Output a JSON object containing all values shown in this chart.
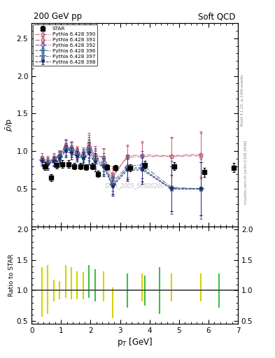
{
  "title_left": "200 GeV pp",
  "title_right": "Soft QCD",
  "ylabel_main": "$\\bar{p}$/p",
  "xlabel": "p$_{T}$ [GeV]",
  "ylabel_ratio": "Ratio to STAR",
  "watermark": "STAR_2005_S6500200",
  "right_label_top": "Rivet 3.1.10, ≥ 100k events",
  "right_label_bottom": "mcplots.cern.ch [arXiv:1306.3436]",
  "ylim_main": [
    0.0,
    2.7
  ],
  "ylim_ratio": [
    0.45,
    2.05
  ],
  "xlim": [
    0.0,
    7.0
  ],
  "yticks_main": [
    0.5,
    1.0,
    1.5,
    2.0,
    2.5
  ],
  "yticks_ratio": [
    0.5,
    1.0,
    1.5,
    2.0
  ],
  "star_x": [
    0.45,
    0.65,
    0.85,
    1.05,
    1.25,
    1.45,
    1.65,
    1.85,
    2.05,
    2.25,
    2.55,
    2.85,
    3.35,
    3.85,
    4.85,
    5.85,
    6.85
  ],
  "star_y": [
    0.8,
    0.65,
    0.82,
    0.83,
    0.83,
    0.8,
    0.8,
    0.79,
    0.8,
    0.7,
    0.79,
    0.78,
    0.78,
    0.82,
    0.8,
    0.72,
    0.78
  ],
  "star_yerr": [
    0.05,
    0.05,
    0.05,
    0.05,
    0.05,
    0.04,
    0.04,
    0.04,
    0.04,
    0.04,
    0.04,
    0.04,
    0.05,
    0.05,
    0.05,
    0.06,
    0.06
  ],
  "pythia_tunes": [
    390,
    391,
    392,
    396,
    397,
    398
  ],
  "pythia_colors": [
    "#c06070",
    "#c06070",
    "#7050b0",
    "#407890",
    "#507890",
    "#202870"
  ],
  "pythia_markers": [
    "o",
    "s",
    "D",
    "*",
    "*",
    "v"
  ],
  "pythia_linestyles": [
    "-.",
    "-.",
    "-.",
    "--",
    "--",
    "--"
  ],
  "pythia_390_x": [
    0.35,
    0.55,
    0.75,
    0.95,
    1.15,
    1.35,
    1.55,
    1.75,
    1.95,
    2.15,
    2.45,
    2.75,
    3.25,
    3.75,
    4.75,
    5.75
  ],
  "pythia_390_y": [
    0.92,
    0.86,
    0.91,
    0.95,
    1.07,
    1.05,
    0.97,
    0.95,
    1.07,
    0.95,
    0.92,
    0.65,
    0.94,
    0.95,
    0.94,
    0.96
  ],
  "pythia_390_yerr": [
    0.05,
    0.08,
    0.06,
    0.06,
    0.08,
    0.08,
    0.07,
    0.08,
    0.15,
    0.12,
    0.12,
    0.12,
    0.15,
    0.18,
    0.25,
    0.3
  ],
  "pythia_391_x": [
    0.35,
    0.55,
    0.75,
    0.95,
    1.15,
    1.35,
    1.55,
    1.75,
    1.95,
    2.15,
    2.45,
    2.75,
    3.25,
    3.75,
    4.75,
    5.75
  ],
  "pythia_391_y": [
    0.88,
    0.85,
    0.9,
    0.95,
    1.08,
    1.04,
    1.0,
    0.97,
    1.1,
    0.95,
    0.91,
    0.68,
    0.92,
    0.93,
    0.93,
    0.94
  ],
  "pythia_391_yerr": [
    0.05,
    0.07,
    0.06,
    0.06,
    0.08,
    0.08,
    0.07,
    0.08,
    0.14,
    0.12,
    0.12,
    0.12,
    0.15,
    0.18,
    0.25,
    0.3
  ],
  "pythia_392_x": [
    0.35,
    0.55,
    0.75,
    0.95,
    1.15,
    1.35,
    1.55,
    1.75,
    1.95,
    2.15,
    2.45,
    2.75,
    3.25,
    3.75,
    4.75,
    5.75
  ],
  "pythia_392_y": [
    0.88,
    0.84,
    0.88,
    0.94,
    1.06,
    1.03,
    0.98,
    0.95,
    1.05,
    0.92,
    0.85,
    0.59,
    0.8,
    0.82,
    0.52,
    0.5
  ],
  "pythia_392_yerr": [
    0.05,
    0.07,
    0.06,
    0.06,
    0.08,
    0.08,
    0.07,
    0.08,
    0.14,
    0.12,
    0.12,
    0.12,
    0.15,
    0.18,
    0.35,
    0.4
  ],
  "pythia_396_x": [
    0.35,
    0.55,
    0.75,
    0.95,
    1.15,
    1.35,
    1.55,
    1.75,
    1.95,
    2.15,
    2.45,
    2.75,
    3.25,
    3.75,
    4.75,
    5.75
  ],
  "pythia_396_y": [
    0.88,
    0.84,
    0.87,
    0.93,
    1.03,
    1.01,
    0.96,
    0.93,
    1.02,
    0.9,
    0.82,
    0.56,
    0.77,
    0.77,
    0.5,
    0.5
  ],
  "pythia_396_yerr": [
    0.05,
    0.07,
    0.06,
    0.06,
    0.08,
    0.08,
    0.07,
    0.08,
    0.14,
    0.12,
    0.12,
    0.12,
    0.15,
    0.18,
    0.3,
    0.35
  ],
  "pythia_397_x": [
    0.35,
    0.55,
    0.75,
    0.95,
    1.15,
    1.35,
    1.55,
    1.75,
    1.95,
    2.15,
    2.45,
    2.75,
    3.25,
    3.75,
    4.75,
    5.75
  ],
  "pythia_397_y": [
    0.88,
    0.84,
    0.87,
    0.92,
    1.02,
    1.0,
    0.95,
    0.92,
    1.0,
    0.88,
    0.81,
    0.55,
    0.78,
    0.78,
    0.5,
    0.5
  ],
  "pythia_397_yerr": [
    0.05,
    0.07,
    0.06,
    0.06,
    0.08,
    0.08,
    0.07,
    0.08,
    0.14,
    0.12,
    0.12,
    0.12,
    0.15,
    0.18,
    0.3,
    0.35
  ],
  "pythia_398_x": [
    0.35,
    0.55,
    0.75,
    0.95,
    1.15,
    1.35,
    1.55,
    1.75,
    1.95,
    2.15,
    2.45,
    2.75,
    3.25,
    3.75,
    4.75,
    5.75
  ],
  "pythia_398_y": [
    0.86,
    0.82,
    0.86,
    0.9,
    1.0,
    0.97,
    0.93,
    0.9,
    0.97,
    0.85,
    0.79,
    0.53,
    0.75,
    0.75,
    0.5,
    0.5
  ],
  "pythia_398_yerr": [
    0.05,
    0.07,
    0.06,
    0.06,
    0.08,
    0.08,
    0.07,
    0.08,
    0.14,
    0.12,
    0.12,
    0.12,
    0.15,
    0.18,
    0.3,
    0.35
  ],
  "ratio_yellow_x": [
    0.35,
    0.55,
    0.75,
    0.95,
    1.15,
    1.35,
    1.55,
    1.75,
    2.45,
    2.75,
    3.75,
    4.75,
    5.75
  ],
  "ratio_yellow_lo": [
    0.57,
    0.62,
    0.82,
    0.85,
    0.88,
    0.85,
    0.85,
    0.85,
    0.82,
    0.55,
    0.82,
    0.82,
    0.82
  ],
  "ratio_yellow_hi": [
    1.38,
    1.42,
    1.18,
    1.15,
    1.42,
    1.38,
    1.32,
    1.3,
    1.32,
    1.05,
    1.28,
    1.28,
    1.28
  ],
  "ratio_green_x": [
    1.95,
    2.15,
    3.25,
    3.85,
    4.35,
    6.35
  ],
  "ratio_green_lo": [
    0.88,
    0.82,
    0.72,
    0.75,
    0.62,
    0.72
  ],
  "ratio_green_hi": [
    1.42,
    1.35,
    1.28,
    1.25,
    1.38,
    1.28
  ]
}
